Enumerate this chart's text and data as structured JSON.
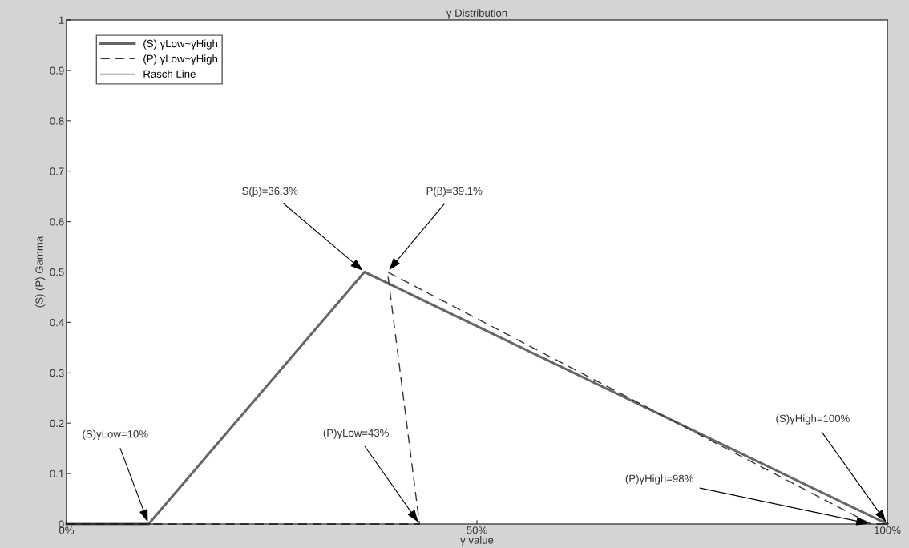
{
  "chart_data": {
    "type": "line",
    "title": "γ Distribution",
    "xlabel": "γ value",
    "ylabel": "(S) (P) Gamma",
    "series": [
      {
        "name": "(S) γLow~γHigh",
        "color": "#666666",
        "x": [
          0,
          10,
          36.3,
          100
        ],
        "values": [
          0,
          0,
          0.5,
          0
        ],
        "line_style": "solid"
      },
      {
        "name": "(P) γLow~γHigh",
        "color": "#333333",
        "x": [
          0,
          43,
          39.1,
          98,
          100
        ],
        "values": [
          0,
          0,
          0.5,
          0,
          0
        ],
        "line_style": "dashed"
      },
      {
        "name": "Rasch Line",
        "color": "#a6a6a6",
        "x": [
          0,
          100
        ],
        "values": [
          0.5,
          0.5
        ],
        "line_style": "solid"
      }
    ],
    "xlim": [
      0,
      100
    ],
    "xticks": [
      {
        "value": 0,
        "label": "0%"
      },
      {
        "value": 50,
        "label": "50%"
      },
      {
        "value": 100,
        "label": "100%"
      }
    ],
    "ylim": [
      0,
      1
    ],
    "yticks": [
      0,
      0.1,
      0.2,
      0.3,
      0.4,
      0.5,
      0.6,
      0.7,
      0.8,
      0.9,
      1
    ],
    "annotations": [
      {
        "text": "S(β)=36.3%",
        "x": 36.3,
        "y": 0.5
      },
      {
        "text": "P(β)=39.1%",
        "x": 39.1,
        "y": 0.5
      },
      {
        "text": "(S)γLow=10%",
        "x": 10,
        "y": 0
      },
      {
        "text": "(P)γLow=43%",
        "x": 43,
        "y": 0
      },
      {
        "text": "(S)γHigh=100%",
        "x": 100,
        "y": 0
      },
      {
        "text": "(P)γHigh=98%",
        "x": 98,
        "y": 0
      }
    ],
    "legend": "top left",
    "grid": false
  }
}
